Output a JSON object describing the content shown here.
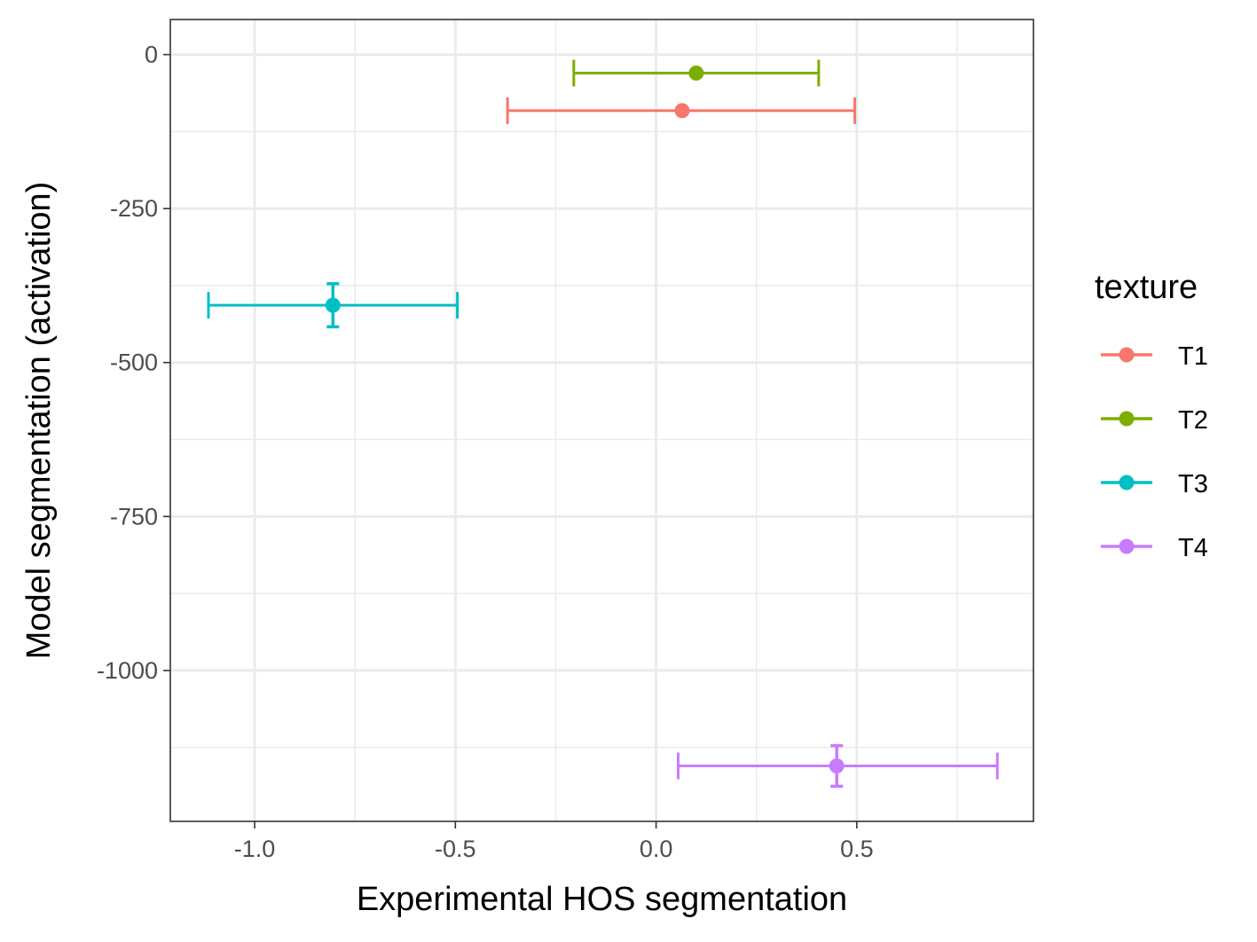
{
  "chart_data": {
    "type": "scatter",
    "xlabel": "Experimental HOS segmentation",
    "ylabel": "Model segmentation (activation)",
    "xlim": [
      -1.21,
      0.94
    ],
    "ylim": [
      -1245,
      57
    ],
    "x_ticks": [
      -1.0,
      -0.5,
      0.0,
      0.5
    ],
    "x_tick_labels": [
      "-1.0",
      "-0.5",
      "0.0",
      "0.5"
    ],
    "y_ticks": [
      0,
      -250,
      -500,
      -750,
      -1000
    ],
    "y_tick_labels": [
      "0",
      "-250",
      "-500",
      "-750",
      "-1000"
    ],
    "grid": true,
    "legend": {
      "title": "texture",
      "position": "right"
    },
    "series": [
      {
        "name": "T1",
        "color": "#F8766D",
        "x": 0.065,
        "y": -91,
        "xmin": -0.37,
        "xmax": 0.495,
        "ymin": -91,
        "ymax": -91
      },
      {
        "name": "T2",
        "color": "#7CAE00",
        "x": 0.1,
        "y": -30,
        "xmin": -0.205,
        "xmax": 0.405,
        "ymin": -30,
        "ymax": -30
      },
      {
        "name": "T3",
        "color": "#00BFC4",
        "x": -0.805,
        "y": -407,
        "xmin": -1.115,
        "xmax": -0.495,
        "ymin": -442,
        "ymax": -372
      },
      {
        "name": "T4",
        "color": "#C77CFF",
        "x": 0.45,
        "y": -1155,
        "xmin": 0.055,
        "xmax": 0.85,
        "ymin": -1188,
        "ymax": -1122
      }
    ]
  }
}
